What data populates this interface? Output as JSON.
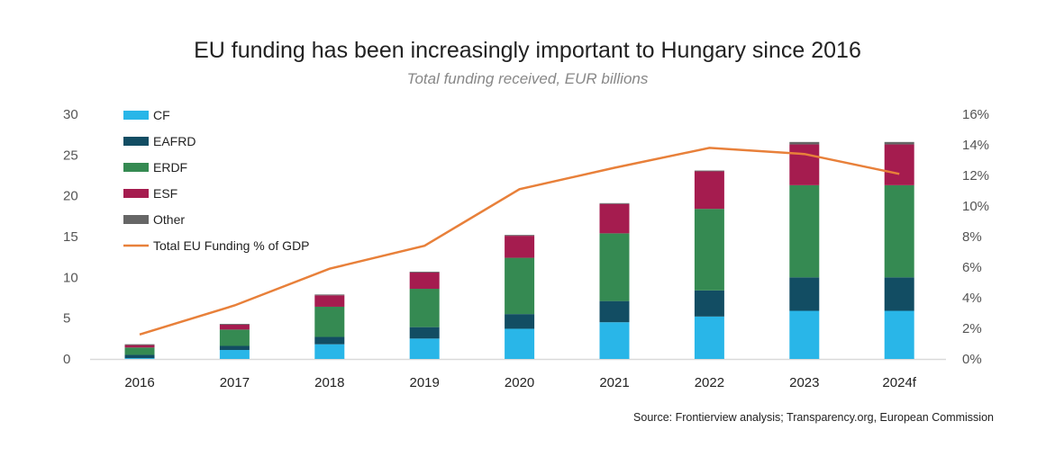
{
  "chart_data": {
    "type": "bar",
    "stacked": true,
    "title": "EU funding has been increasingly important to Hungary since 2016",
    "subtitle": "Total funding received, EUR billions",
    "source": "Source: Frontierview analysis; Transparency.org, European Commission",
    "categories": [
      "2016",
      "2017",
      "2018",
      "2019",
      "2020",
      "2021",
      "2022",
      "2023",
      "2024f"
    ],
    "ylim": [
      0,
      30
    ],
    "yticks": [
      "0",
      "5",
      "10",
      "15",
      "20",
      "25",
      "30"
    ],
    "y2lim": [
      0,
      16
    ],
    "y2ticks": [
      "0%",
      "2%",
      "4%",
      "6%",
      "8%",
      "10%",
      "12%",
      "14%",
      "16%"
    ],
    "legend_position": "top-left",
    "series": [
      {
        "name": "CF",
        "color": "#29b6e8",
        "values": [
          0.1,
          1.1,
          1.8,
          2.5,
          3.7,
          4.5,
          5.2,
          5.9,
          5.9
        ]
      },
      {
        "name": "EAFRD",
        "color": "#124d63",
        "values": [
          0.4,
          0.5,
          0.9,
          1.4,
          1.8,
          2.6,
          3.2,
          4.1,
          4.1
        ]
      },
      {
        "name": "ERDF",
        "color": "#358a52",
        "values": [
          0.9,
          2.0,
          3.7,
          4.7,
          6.9,
          8.3,
          10.0,
          11.3,
          11.3
        ]
      },
      {
        "name": "ESF",
        "color": "#a51c4f",
        "values": [
          0.3,
          0.6,
          1.4,
          2.0,
          2.7,
          3.6,
          4.6,
          5.0,
          5.0
        ]
      },
      {
        "name": "Other",
        "color": "#666666",
        "values": [
          0.1,
          0.1,
          0.1,
          0.1,
          0.1,
          0.1,
          0.1,
          0.3,
          0.3
        ]
      }
    ],
    "line_series": {
      "name": "Total EU Funding % of GDP",
      "color": "#e8803a",
      "axis": "right",
      "values": [
        1.6,
        3.5,
        5.9,
        7.4,
        11.1,
        12.5,
        13.8,
        13.4,
        12.1
      ]
    }
  }
}
